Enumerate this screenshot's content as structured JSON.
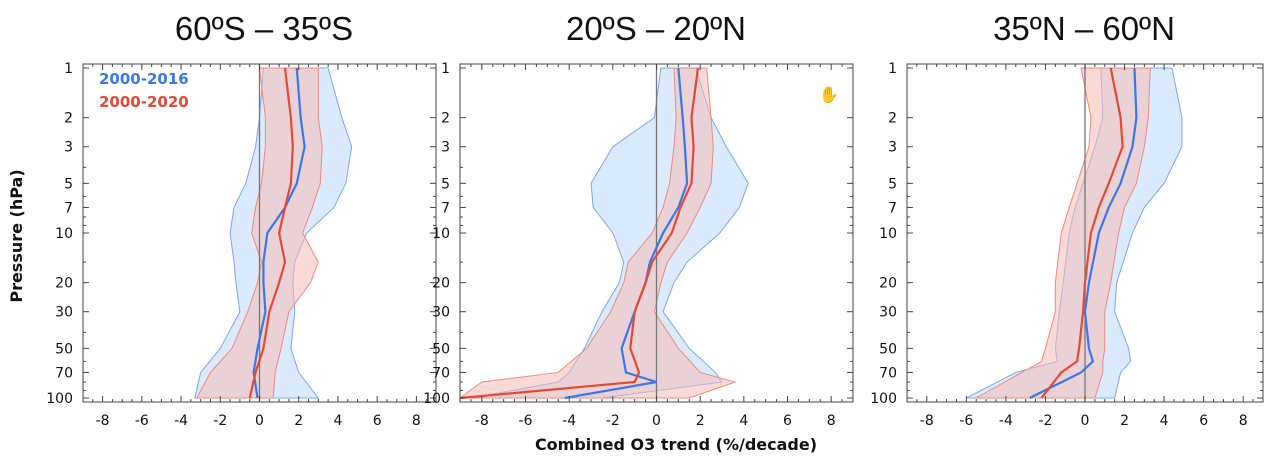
{
  "figure": {
    "ylabel": "Pressure (hPa)",
    "xlabel": "Combined O3 trend (%/decade)"
  },
  "colors": {
    "series_2000_2016": "#3a78e8",
    "band_2000_2016": "#cfe3fb",
    "series_2000_2020": "#e34a36",
    "band_2000_2020": "#f4bcb4"
  },
  "chart_data": [
    {
      "type": "line",
      "title": "60ºS – 35ºS",
      "xlabel": "",
      "ylabel": "Pressure (hPa)",
      "xlim": [
        -9,
        9
      ],
      "ylim": [
        100,
        1
      ],
      "yscale": "log",
      "xticks": [
        -8,
        -6,
        -4,
        -2,
        0,
        2,
        4,
        6,
        8
      ],
      "yticks": [
        1,
        2,
        3,
        5,
        7,
        10,
        20,
        30,
        50,
        70,
        100
      ],
      "legend": {
        "placement": "top-left",
        "entries": [
          "2000-2016",
          "2000-2020"
        ]
      },
      "y": [
        1,
        2,
        3,
        5,
        7,
        10,
        15,
        20,
        30,
        50,
        70,
        100
      ],
      "series": [
        {
          "name": "2000-2016",
          "trend": [
            1.9,
            2.1,
            2.3,
            1.9,
            1.3,
            0.4,
            0.2,
            0.2,
            0.3,
            -0.1,
            -0.3,
            -0.1
          ],
          "lower": [
            0.2,
            0.0,
            -0.2,
            -0.7,
            -1.3,
            -1.5,
            -1.3,
            -1.2,
            -1.0,
            -2.0,
            -3.0,
            -3.3
          ],
          "upper": [
            3.5,
            4.2,
            4.7,
            4.4,
            3.8,
            2.4,
            1.8,
            1.7,
            1.8,
            1.6,
            2.0,
            3.0
          ]
        },
        {
          "name": "2000-2020",
          "trend": [
            1.3,
            1.6,
            1.7,
            1.6,
            1.3,
            1.0,
            1.3,
            1.0,
            0.5,
            0.2,
            -0.2,
            -0.5
          ],
          "lower": [
            0.0,
            0.3,
            0.3,
            0.1,
            -0.2,
            -0.4,
            0.1,
            -0.1,
            -0.6,
            -1.4,
            -2.5,
            -3.2
          ],
          "upper": [
            3.0,
            3.0,
            3.2,
            3.1,
            2.7,
            2.2,
            3.0,
            2.6,
            1.5,
            1.1,
            0.8,
            0.7
          ]
        }
      ]
    },
    {
      "type": "line",
      "title": "20ºS – 20ºN",
      "xlabel": "Combined O3 trend (%/decade)",
      "ylabel": "",
      "xlim": [
        -9,
        9
      ],
      "ylim": [
        100,
        1
      ],
      "yscale": "log",
      "xticks": [
        -8,
        -6,
        -4,
        -2,
        0,
        2,
        4,
        6,
        8
      ],
      "yticks": [
        1,
        2,
        3,
        5,
        7,
        10,
        20,
        30,
        50,
        70,
        100
      ],
      "legend": null,
      "y": [
        1,
        2,
        3,
        5,
        7,
        10,
        15,
        20,
        30,
        50,
        70,
        80,
        100
      ],
      "series": [
        {
          "name": "2000-2016",
          "trend": [
            1.0,
            1.2,
            1.3,
            1.4,
            1.0,
            0.3,
            -0.3,
            -0.5,
            -1.0,
            -1.6,
            -1.4,
            0.0,
            -4.2
          ],
          "lower": [
            0.2,
            -0.1,
            -2.0,
            -3.0,
            -2.9,
            -2.0,
            -1.5,
            -1.7,
            -2.5,
            -3.3,
            -4.0,
            -4.5,
            -8.5
          ],
          "upper": [
            1.8,
            2.5,
            3.2,
            4.2,
            3.8,
            2.9,
            1.4,
            0.8,
            0.3,
            1.5,
            2.7,
            3.0,
            -2.5
          ]
        },
        {
          "name": "2000-2020",
          "trend": [
            1.9,
            1.6,
            1.7,
            1.6,
            1.1,
            0.7,
            -0.2,
            -0.5,
            -1.0,
            -1.2,
            -0.8,
            -1.0,
            -9.0
          ],
          "lower": [
            0.8,
            0.9,
            0.8,
            0.6,
            0.3,
            -0.2,
            -1.3,
            -1.5,
            -2.1,
            -3.2,
            -4.5,
            -8.0,
            -9.0
          ],
          "upper": [
            2.3,
            2.5,
            2.6,
            2.5,
            2.0,
            1.4,
            0.5,
            0.2,
            -0.1,
            1.0,
            2.0,
            3.6,
            1.5
          ]
        }
      ]
    },
    {
      "type": "line",
      "title": "35ºN – 60ºN",
      "xlabel": "",
      "ylabel": "",
      "xlim": [
        -9,
        9
      ],
      "ylim": [
        100,
        1
      ],
      "yscale": "log",
      "xticks": [
        -8,
        -6,
        -4,
        -2,
        0,
        2,
        4,
        6,
        8
      ],
      "yticks": [
        1,
        2,
        3,
        5,
        7,
        10,
        20,
        30,
        50,
        70,
        100
      ],
      "legend": null,
      "y": [
        1,
        2,
        3,
        5,
        7,
        10,
        20,
        30,
        50,
        60,
        70,
        100
      ],
      "series": [
        {
          "name": "2000-2016",
          "trend": [
            2.5,
            2.6,
            2.4,
            1.8,
            1.2,
            0.7,
            0.2,
            0.0,
            0.2,
            0.4,
            -0.2,
            -2.8
          ],
          "lower": [
            0.8,
            0.9,
            0.5,
            -0.1,
            -0.5,
            -0.8,
            -1.1,
            -1.3,
            -1.5,
            -1.4,
            -3.5,
            -6.0
          ],
          "upper": [
            4.4,
            4.9,
            4.9,
            4.0,
            3.0,
            2.4,
            1.6,
            1.5,
            2.2,
            2.3,
            1.8,
            1.5
          ]
        },
        {
          "name": "2000-2020",
          "trend": [
            1.3,
            1.8,
            1.9,
            1.2,
            0.7,
            0.3,
            0.0,
            -0.1,
            -0.3,
            -0.4,
            -1.2,
            -2.2
          ],
          "lower": [
            -0.2,
            0.3,
            0.2,
            -0.4,
            -0.8,
            -1.2,
            -1.5,
            -1.5,
            -2.0,
            -2.2,
            -3.2,
            -5.5
          ],
          "upper": [
            3.3,
            3.2,
            3.0,
            2.6,
            2.0,
            1.7,
            1.3,
            1.0,
            1.0,
            0.9,
            0.9,
            0.5
          ]
        }
      ]
    }
  ],
  "extras": {
    "cursor_icon": "hand-cursor-icon"
  }
}
